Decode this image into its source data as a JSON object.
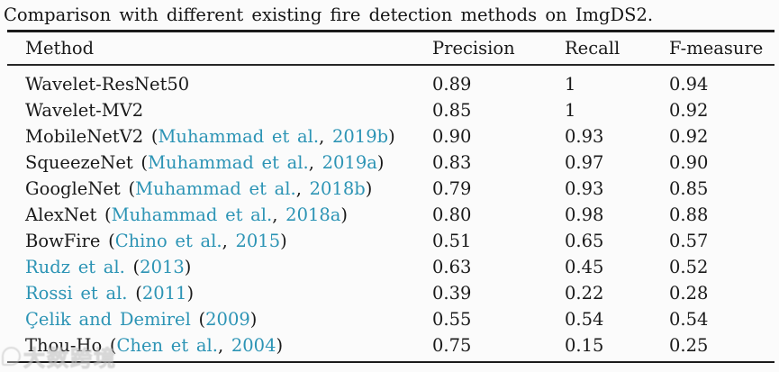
{
  "caption": "Comparison with different existing fire detection methods on ImgDS2.",
  "colors": {
    "text": "#1a1a1a",
    "link": "#2c94b5",
    "rule": "#1b1b1b",
    "background": "#fbfbfb"
  },
  "table": {
    "columns": [
      "Method",
      "Precision",
      "Recall",
      "F-measure"
    ],
    "rows": [
      {
        "method": [
          {
            "text": "Wavelet-ResNet50",
            "link": false
          }
        ],
        "precision": "0.89",
        "recall": "1",
        "fmeasure": "0.94"
      },
      {
        "method": [
          {
            "text": "Wavelet-MV2",
            "link": false
          }
        ],
        "precision": "0.85",
        "recall": "1",
        "fmeasure": "0.92"
      },
      {
        "method": [
          {
            "text": "MobileNetV2 (",
            "link": false
          },
          {
            "text": "Muhammad et al.",
            "link": true
          },
          {
            "text": ", ",
            "link": false
          },
          {
            "text": "2019b",
            "link": true
          },
          {
            "text": ")",
            "link": false
          }
        ],
        "precision": "0.90",
        "recall": "0.93",
        "fmeasure": "0.92"
      },
      {
        "method": [
          {
            "text": "SqueezeNet (",
            "link": false
          },
          {
            "text": "Muhammad et al.",
            "link": true
          },
          {
            "text": ", ",
            "link": false
          },
          {
            "text": "2019a",
            "link": true
          },
          {
            "text": ")",
            "link": false
          }
        ],
        "precision": "0.83",
        "recall": "0.97",
        "fmeasure": "0.90"
      },
      {
        "method": [
          {
            "text": "GoogleNet (",
            "link": false
          },
          {
            "text": "Muhammad et al.",
            "link": true
          },
          {
            "text": ", ",
            "link": false
          },
          {
            "text": "2018b",
            "link": true
          },
          {
            "text": ")",
            "link": false
          }
        ],
        "precision": "0.79",
        "recall": "0.93",
        "fmeasure": "0.85"
      },
      {
        "method": [
          {
            "text": "AlexNet (",
            "link": false
          },
          {
            "text": "Muhammad et al.",
            "link": true
          },
          {
            "text": ", ",
            "link": false
          },
          {
            "text": "2018a",
            "link": true
          },
          {
            "text": ")",
            "link": false
          }
        ],
        "precision": "0.80",
        "recall": "0.98",
        "fmeasure": "0.88"
      },
      {
        "method": [
          {
            "text": "BowFire (",
            "link": false
          },
          {
            "text": "Chino et al.",
            "link": true
          },
          {
            "text": ", ",
            "link": false
          },
          {
            "text": "2015",
            "link": true
          },
          {
            "text": ")",
            "link": false
          }
        ],
        "precision": "0.51",
        "recall": "0.65",
        "fmeasure": "0.57"
      },
      {
        "method": [
          {
            "text": "Rudz et al.",
            "link": true
          },
          {
            "text": " (",
            "link": false
          },
          {
            "text": "2013",
            "link": true
          },
          {
            "text": ")",
            "link": false
          }
        ],
        "precision": "0.63",
        "recall": "0.45",
        "fmeasure": "0.52"
      },
      {
        "method": [
          {
            "text": "Rossi et al.",
            "link": true
          },
          {
            "text": " (",
            "link": false
          },
          {
            "text": "2011",
            "link": true
          },
          {
            "text": ")",
            "link": false
          }
        ],
        "precision": "0.39",
        "recall": "0.22",
        "fmeasure": "0.28"
      },
      {
        "method": [
          {
            "text": "Çelik and Demirel",
            "link": true
          },
          {
            "text": " (",
            "link": false
          },
          {
            "text": "2009",
            "link": true
          },
          {
            "text": ")",
            "link": false
          }
        ],
        "precision": "0.55",
        "recall": "0.54",
        "fmeasure": "0.54"
      },
      {
        "method": [
          {
            "text": "Thou-Ho (",
            "link": false
          },
          {
            "text": "Chen et al.",
            "link": true
          },
          {
            "text": ", ",
            "link": false
          },
          {
            "text": "2004",
            "link": true
          },
          {
            "text": ")",
            "link": false
          }
        ],
        "precision": "0.75",
        "recall": "0.15",
        "fmeasure": "0.25"
      }
    ]
  },
  "watermark": {
    "text": "大数跨境"
  }
}
